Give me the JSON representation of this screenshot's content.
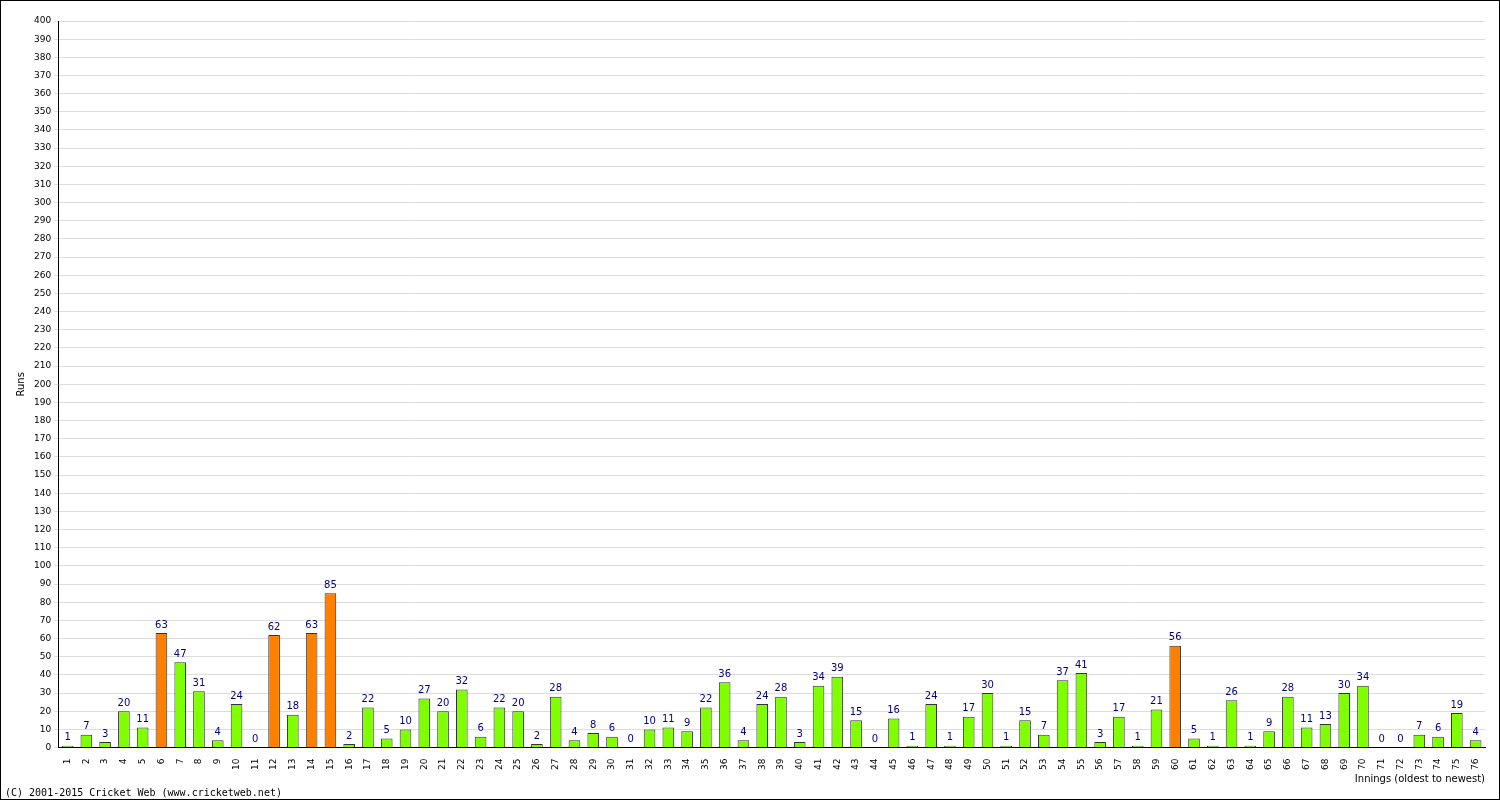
{
  "chart_data": {
    "type": "bar",
    "x_label": "Innings (oldest to newest)",
    "y_label": "Runs",
    "annotations": [
      "(C) 2001-2015 Cricket Web (www.cricketweb.net)"
    ],
    "categories": [
      "1",
      "2",
      "3",
      "4",
      "5",
      "6",
      "7",
      "8",
      "9",
      "10",
      "11",
      "12",
      "13",
      "14",
      "15",
      "16",
      "17",
      "18",
      "19",
      "20",
      "21",
      "22",
      "23",
      "24",
      "25",
      "26",
      "27",
      "28",
      "29",
      "30",
      "31",
      "32",
      "33",
      "34",
      "35",
      "36",
      "37",
      "38",
      "39",
      "40",
      "41",
      "42",
      "43",
      "44",
      "45",
      "46",
      "47",
      "48",
      "49",
      "50",
      "51",
      "52",
      "53",
      "54",
      "55",
      "56",
      "57",
      "58",
      "59",
      "60",
      "61",
      "62",
      "63",
      "64",
      "65",
      "66",
      "67",
      "68",
      "69",
      "70",
      "71",
      "72",
      "73",
      "74",
      "75",
      "76"
    ],
    "values": [
      1,
      7,
      3,
      20,
      11,
      63,
      47,
      31,
      4,
      24,
      0,
      62,
      18,
      63,
      85,
      2,
      22,
      5,
      10,
      27,
      20,
      32,
      6,
      22,
      20,
      2,
      28,
      4,
      8,
      6,
      0,
      10,
      11,
      9,
      22,
      36,
      4,
      24,
      28,
      3,
      34,
      39,
      15,
      0,
      16,
      1,
      24,
      1,
      17,
      30,
      1,
      15,
      7,
      37,
      41,
      3,
      17,
      1,
      21,
      56,
      5,
      1,
      26,
      1,
      9,
      28,
      11,
      13,
      30,
      34,
      0,
      0,
      7,
      6,
      19,
      4
    ],
    "colors": [
      "#80ff00",
      "#80ff00",
      "#80ff00",
      "#80ff00",
      "#80ff00",
      "#ff8000",
      "#80ff00",
      "#80ff00",
      "#80ff00",
      "#80ff00",
      "#80ff00",
      "#ff8000",
      "#80ff00",
      "#ff8000",
      "#ff8000",
      "#80ff00",
      "#80ff00",
      "#80ff00",
      "#80ff00",
      "#80ff00",
      "#80ff00",
      "#80ff00",
      "#80ff00",
      "#80ff00",
      "#80ff00",
      "#80ff00",
      "#80ff00",
      "#80ff00",
      "#80ff00",
      "#80ff00",
      "#80ff00",
      "#80ff00",
      "#80ff00",
      "#80ff00",
      "#80ff00",
      "#80ff00",
      "#80ff00",
      "#80ff00",
      "#80ff00",
      "#80ff00",
      "#80ff00",
      "#80ff00",
      "#80ff00",
      "#80ff00",
      "#80ff00",
      "#80ff00",
      "#80ff00",
      "#80ff00",
      "#80ff00",
      "#80ff00",
      "#80ff00",
      "#80ff00",
      "#80ff00",
      "#80ff00",
      "#80ff00",
      "#80ff00",
      "#80ff00",
      "#80ff00",
      "#80ff00",
      "#ff8000",
      "#80ff00",
      "#80ff00",
      "#80ff00",
      "#80ff00",
      "#80ff00",
      "#80ff00",
      "#80ff00",
      "#80ff00",
      "#80ff00",
      "#80ff00",
      "#80ff00",
      "#80ff00",
      "#80ff00",
      "#80ff00",
      "#80ff00",
      "#80ff00"
    ],
    "ylim": [
      0,
      400
    ],
    "yticks": [
      0,
      10,
      20,
      30,
      40,
      50,
      60,
      70,
      80,
      90,
      100,
      110,
      120,
      130,
      140,
      150,
      160,
      170,
      180,
      190,
      200,
      210,
      220,
      230,
      240,
      250,
      260,
      270,
      280,
      290,
      300,
      310,
      320,
      330,
      340,
      350,
      360,
      370,
      380,
      390,
      400
    ],
    "grid": true,
    "data_labels": true
  }
}
